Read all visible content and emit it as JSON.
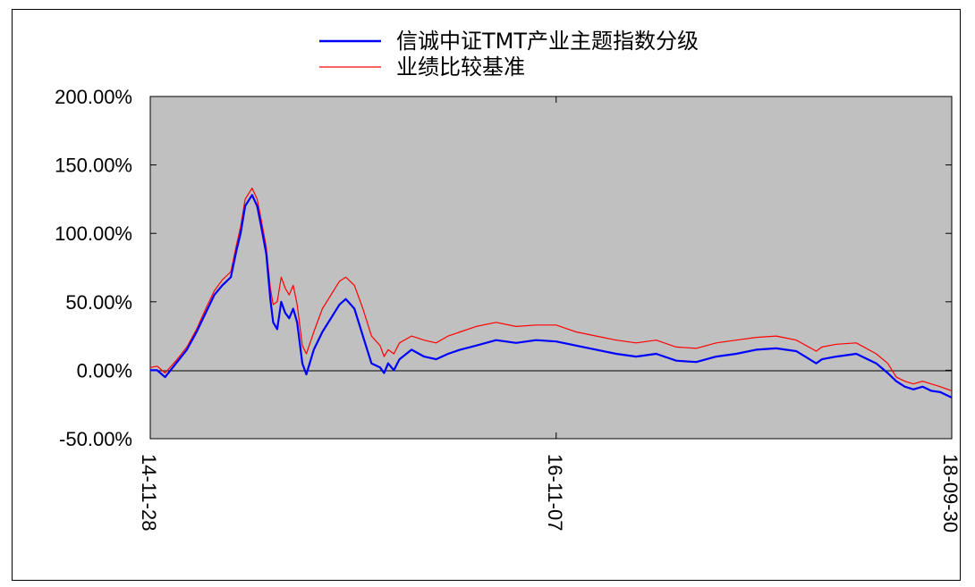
{
  "chart_data": {
    "type": "line",
    "title": "",
    "xlabel": "",
    "ylabel": "",
    "ylim": [
      -0.5,
      2.0
    ],
    "y_ticks": [
      "200.00%",
      "150.00%",
      "100.00%",
      "50.00%",
      "0.00%",
      "-50.00%"
    ],
    "y_tick_values": [
      2.0,
      1.5,
      1.0,
      0.5,
      0.0,
      -0.5
    ],
    "x_ticks": [
      "14-11-28",
      "16-11-07",
      "18-09-30"
    ],
    "x_tick_dates": [
      "2014-11-28",
      "2016-11-07",
      "2018-09-30"
    ],
    "background_color": "#C0C0C0",
    "legend": {
      "placement": "top"
    },
    "series": [
      {
        "name": "信诚中证TMT产业主题指数分级",
        "color": "#0000FF",
        "x": [
          "2014-11-28",
          "2014-12-10",
          "2014-12-24",
          "2015-01-12",
          "2015-01-31",
          "2015-02-17",
          "2015-03-05",
          "2015-03-20",
          "2015-04-03",
          "2015-04-18",
          "2015-04-28",
          "2015-05-05",
          "2015-05-13",
          "2015-05-25",
          "2015-06-03",
          "2015-06-10",
          "2015-06-19",
          "2015-06-26",
          "2015-07-01",
          "2015-07-08",
          "2015-07-15",
          "2015-07-22",
          "2015-07-29",
          "2015-08-05",
          "2015-08-12",
          "2015-08-21",
          "2015-08-28",
          "2015-09-10",
          "2015-09-25",
          "2015-10-10",
          "2015-10-25",
          "2015-11-05",
          "2015-11-20",
          "2015-12-05",
          "2015-12-20",
          "2016-01-04",
          "2016-01-11",
          "2016-01-18",
          "2016-01-28",
          "2016-02-07",
          "2016-02-28",
          "2016-03-21",
          "2016-04-11",
          "2016-05-02",
          "2016-05-23",
          "2016-06-20",
          "2016-07-25",
          "2016-08-29",
          "2016-10-03",
          "2016-11-07",
          "2016-12-12",
          "2017-01-16",
          "2017-02-20",
          "2017-03-27",
          "2017-05-01",
          "2017-06-05",
          "2017-07-10",
          "2017-08-14",
          "2017-09-18",
          "2017-10-23",
          "2017-11-27",
          "2018-01-01",
          "2018-02-05",
          "2018-02-15",
          "2018-03-12",
          "2018-04-16",
          "2018-05-21",
          "2018-06-10",
          "2018-06-25",
          "2018-07-10",
          "2018-07-25",
          "2018-08-10",
          "2018-08-25",
          "2018-09-10",
          "2018-09-30"
        ],
        "values": [
          0.0,
          0.0,
          -0.05,
          0.05,
          0.15,
          0.28,
          0.42,
          0.55,
          0.62,
          0.68,
          0.88,
          1.0,
          1.2,
          1.28,
          1.2,
          1.05,
          0.85,
          0.52,
          0.35,
          0.3,
          0.5,
          0.42,
          0.38,
          0.45,
          0.35,
          0.05,
          -0.03,
          0.15,
          0.28,
          0.38,
          0.48,
          0.52,
          0.45,
          0.25,
          0.05,
          0.02,
          -0.02,
          0.05,
          0.0,
          0.08,
          0.15,
          0.1,
          0.08,
          0.12,
          0.15,
          0.18,
          0.22,
          0.2,
          0.22,
          0.21,
          0.18,
          0.15,
          0.12,
          0.1,
          0.12,
          0.07,
          0.06,
          0.1,
          0.12,
          0.15,
          0.16,
          0.14,
          0.05,
          0.08,
          0.1,
          0.12,
          0.05,
          -0.02,
          -0.08,
          -0.12,
          -0.14,
          -0.12,
          -0.15,
          -0.16,
          -0.2
        ]
      },
      {
        "name": "业绩比较基准",
        "color": "#FF0000",
        "x": [
          "2014-11-28",
          "2014-12-10",
          "2014-12-24",
          "2015-01-12",
          "2015-01-31",
          "2015-02-17",
          "2015-03-05",
          "2015-03-20",
          "2015-04-03",
          "2015-04-18",
          "2015-04-28",
          "2015-05-05",
          "2015-05-13",
          "2015-05-25",
          "2015-06-03",
          "2015-06-10",
          "2015-06-19",
          "2015-06-26",
          "2015-07-01",
          "2015-07-08",
          "2015-07-15",
          "2015-07-22",
          "2015-07-29",
          "2015-08-05",
          "2015-08-12",
          "2015-08-21",
          "2015-08-28",
          "2015-09-10",
          "2015-09-25",
          "2015-10-10",
          "2015-10-25",
          "2015-11-05",
          "2015-11-20",
          "2015-12-05",
          "2015-12-20",
          "2016-01-04",
          "2016-01-11",
          "2016-01-18",
          "2016-01-28",
          "2016-02-07",
          "2016-02-28",
          "2016-03-21",
          "2016-04-11",
          "2016-05-02",
          "2016-05-23",
          "2016-06-20",
          "2016-07-25",
          "2016-08-29",
          "2016-10-03",
          "2016-11-07",
          "2016-12-12",
          "2017-01-16",
          "2017-02-20",
          "2017-03-27",
          "2017-05-01",
          "2017-06-05",
          "2017-07-10",
          "2017-08-14",
          "2017-09-18",
          "2017-10-23",
          "2017-11-27",
          "2018-01-01",
          "2018-02-05",
          "2018-02-15",
          "2018-03-12",
          "2018-04-16",
          "2018-05-21",
          "2018-06-10",
          "2018-06-25",
          "2018-07-10",
          "2018-07-25",
          "2018-08-10",
          "2018-08-25",
          "2018-09-10",
          "2018-09-30"
        ],
        "values": [
          0.02,
          0.03,
          -0.02,
          0.07,
          0.17,
          0.3,
          0.45,
          0.58,
          0.66,
          0.72,
          0.92,
          1.05,
          1.25,
          1.33,
          1.25,
          1.1,
          0.9,
          0.6,
          0.48,
          0.5,
          0.68,
          0.6,
          0.55,
          0.62,
          0.48,
          0.18,
          0.12,
          0.28,
          0.45,
          0.55,
          0.65,
          0.68,
          0.62,
          0.45,
          0.25,
          0.18,
          0.1,
          0.15,
          0.12,
          0.2,
          0.25,
          0.22,
          0.2,
          0.25,
          0.28,
          0.32,
          0.35,
          0.32,
          0.33,
          0.33,
          0.28,
          0.25,
          0.22,
          0.2,
          0.22,
          0.17,
          0.16,
          0.2,
          0.22,
          0.24,
          0.25,
          0.22,
          0.14,
          0.17,
          0.19,
          0.2,
          0.12,
          0.05,
          -0.05,
          -0.08,
          -0.1,
          -0.08,
          -0.1,
          -0.12,
          -0.15
        ]
      }
    ]
  }
}
